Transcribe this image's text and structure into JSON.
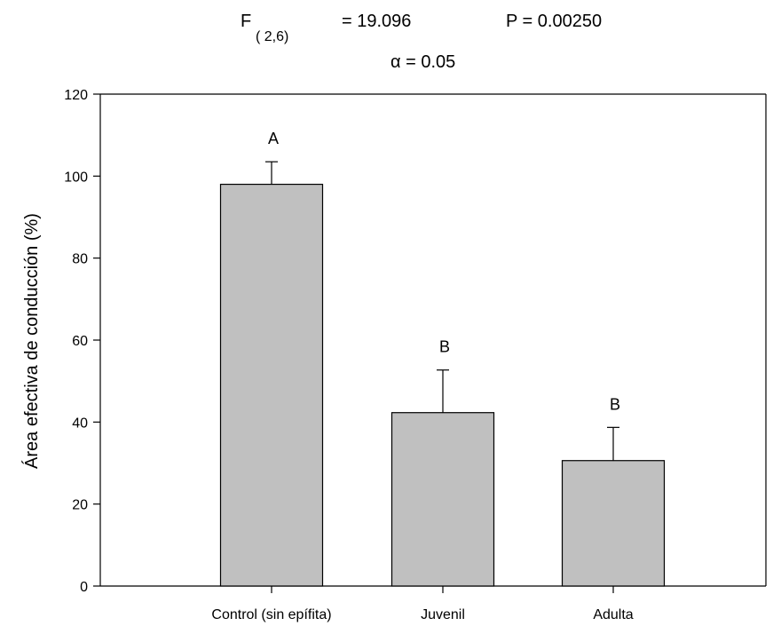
{
  "stats": {
    "f_label": "F",
    "f_df": "( 2,6)",
    "f_value": "= 19.096",
    "p_text": "P = 0.00250",
    "alpha_text": "α = 0.05"
  },
  "chart_data": {
    "type": "bar",
    "title": "",
    "xlabel": "",
    "ylabel": "Área efectiva de conducción  (%)",
    "ylim": [
      0,
      120
    ],
    "yticks": [
      0,
      20,
      40,
      60,
      80,
      100,
      120
    ],
    "categories": [
      "Control (sin epífita)",
      "Juvenil",
      "Adulta"
    ],
    "values": [
      98,
      42.3,
      30.6
    ],
    "error_upper": [
      103.5,
      52.7,
      38.7
    ],
    "significance_letters": [
      "A",
      "B",
      "B"
    ],
    "grid": false,
    "legend": "none",
    "colors": {
      "bar_fill": "#c0c0c0",
      "bar_stroke": "#000000",
      "axis": "#000000"
    }
  }
}
